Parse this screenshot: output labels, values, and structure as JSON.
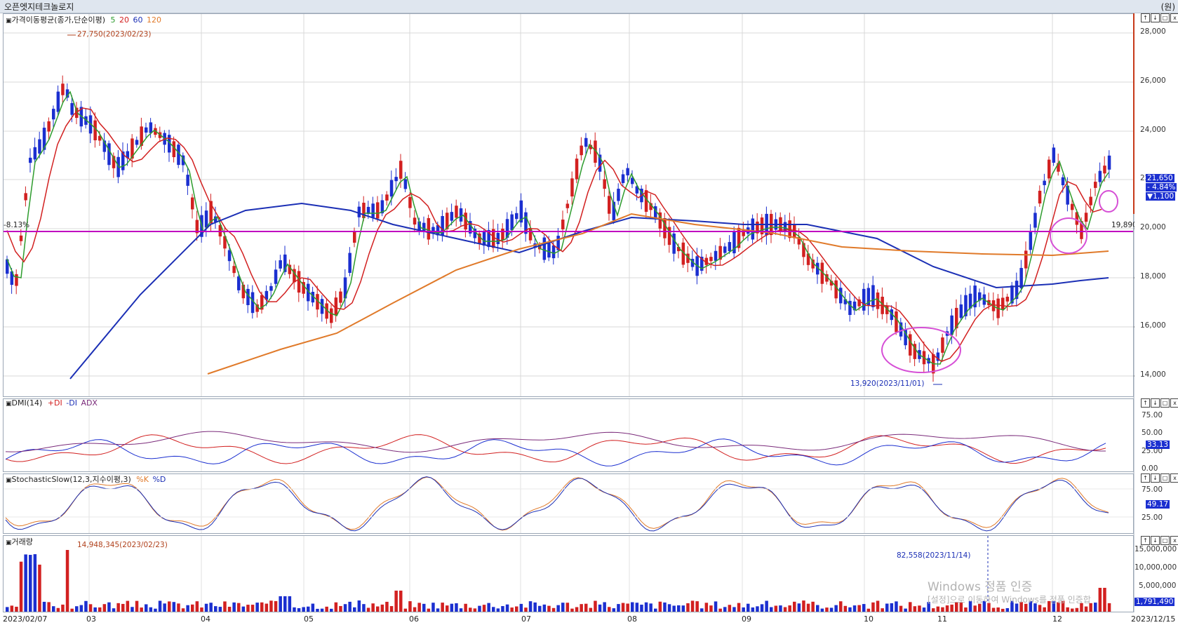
{
  "window": {
    "title": "오픈엣지테크놀로지",
    "unit": "(원)"
  },
  "price_pane": {
    "legend": "가격이동평균(종가,단순이평)",
    "ma_labels": [
      {
        "text": "5",
        "color": "#2e9c2e"
      },
      {
        "text": "20",
        "color": "#d22020"
      },
      {
        "text": "60",
        "color": "#1b2fb5"
      },
      {
        "text": "120",
        "color": "#e07a2a"
      }
    ],
    "y_ticks": [
      "28,000",
      "26,000",
      "24,000",
      "22,000",
      "20,000",
      "18,000",
      "16,000",
      "14,000"
    ],
    "high_label": "27,750(2023/02/23)",
    "low_label": "13,920(2023/11/01)",
    "hline_left_label": "-8.13%",
    "hline_right_label": "19,890",
    "last_price": "21,650",
    "change_pct": "- 4.84%",
    "change_val": "▼1,100"
  },
  "dmi_pane": {
    "legend": "DMI(14)",
    "series_labels": [
      {
        "text": "+DI",
        "color": "#d22020"
      },
      {
        "text": "-DI",
        "color": "#1b2fb5"
      },
      {
        "text": "ADX",
        "color": "#7a2a7a"
      }
    ],
    "y_ticks": [
      "75.00",
      "50.00",
      "25.00",
      "0.00"
    ],
    "last_value": "33.13"
  },
  "stoch_pane": {
    "legend": "StochasticSlow(12,3,지수이평,3)",
    "series_labels": [
      {
        "text": "%K",
        "color": "#e07a2a"
      },
      {
        "text": "%D",
        "color": "#1b2fb5"
      }
    ],
    "y_ticks": [
      "75.00",
      "25.00"
    ],
    "last_value": "49.17"
  },
  "volume_pane": {
    "legend": "거래량",
    "high_label": "14,948,345(2023/02/23)",
    "mid_label": "82,558(2023/11/14)",
    "y_ticks": [
      "15,000,000",
      "10,000,000",
      "5,000,000"
    ],
    "last_value": "1,791,490"
  },
  "x_axis": {
    "start_date": "2023/02/07",
    "end_date": "2023/12/15",
    "months": [
      "03",
      "04",
      "05",
      "06",
      "07",
      "08",
      "09",
      "10",
      "11",
      "12"
    ]
  },
  "watermark": {
    "line1": "Windows 정품 인증",
    "line2": "[설정]으로 이동하여 Windows를 정품 인증합"
  },
  "pane_controls": [
    "↑",
    "↓",
    "□",
    "x"
  ],
  "colors": {
    "up": "#d22020",
    "down": "#1b2fd0",
    "ma5": "#2e9c2e",
    "ma20": "#d22020",
    "ma60": "#1b2fb5",
    "ma120": "#e07a2a",
    "hline": "#c000c0",
    "highlight": "#d64fd6"
  }
}
